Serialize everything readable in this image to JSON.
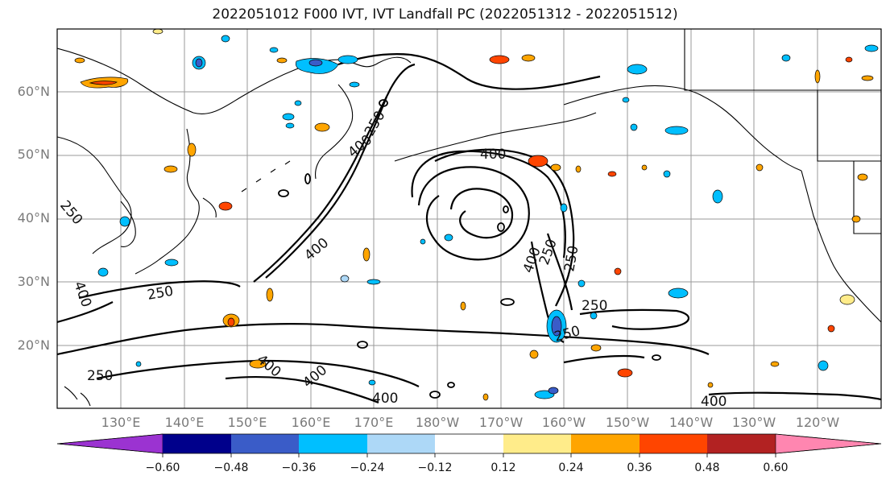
{
  "map": {
    "title": "2022051012 F000 IVT, IVT Landfall PC (2022051312 - 2022051512)",
    "lat_labels": [
      "60°N",
      "50°N",
      "40°N",
      "30°N",
      "20°N"
    ],
    "lon_labels": [
      "130°E",
      "140°E",
      "150°E",
      "160°E",
      "170°E",
      "180°W",
      "170°W",
      "160°W",
      "150°W",
      "140°W",
      "130°W",
      "120°W"
    ],
    "contour_labels": [
      "400",
      "250",
      "400",
      "250",
      "400",
      "250",
      "400",
      "400",
      "250",
      "250",
      "250",
      "400",
      "400",
      "400",
      "250",
      "400",
      "250"
    ],
    "grid": true
  },
  "colorbar": {
    "ticks": [
      "−0.60",
      "−0.48",
      "−0.36",
      "−0.24",
      "−0.12",
      "0.12",
      "0.24",
      "0.36",
      "0.48",
      "0.60"
    ],
    "colors": [
      "#9b33d1",
      "#00008b",
      "#3a5cc8",
      "#00bfff",
      "#add8f7",
      "#ffffff",
      "#ffec8a",
      "#ffa500",
      "#ff4500",
      "#b22222",
      "#ff86b0"
    ]
  }
}
